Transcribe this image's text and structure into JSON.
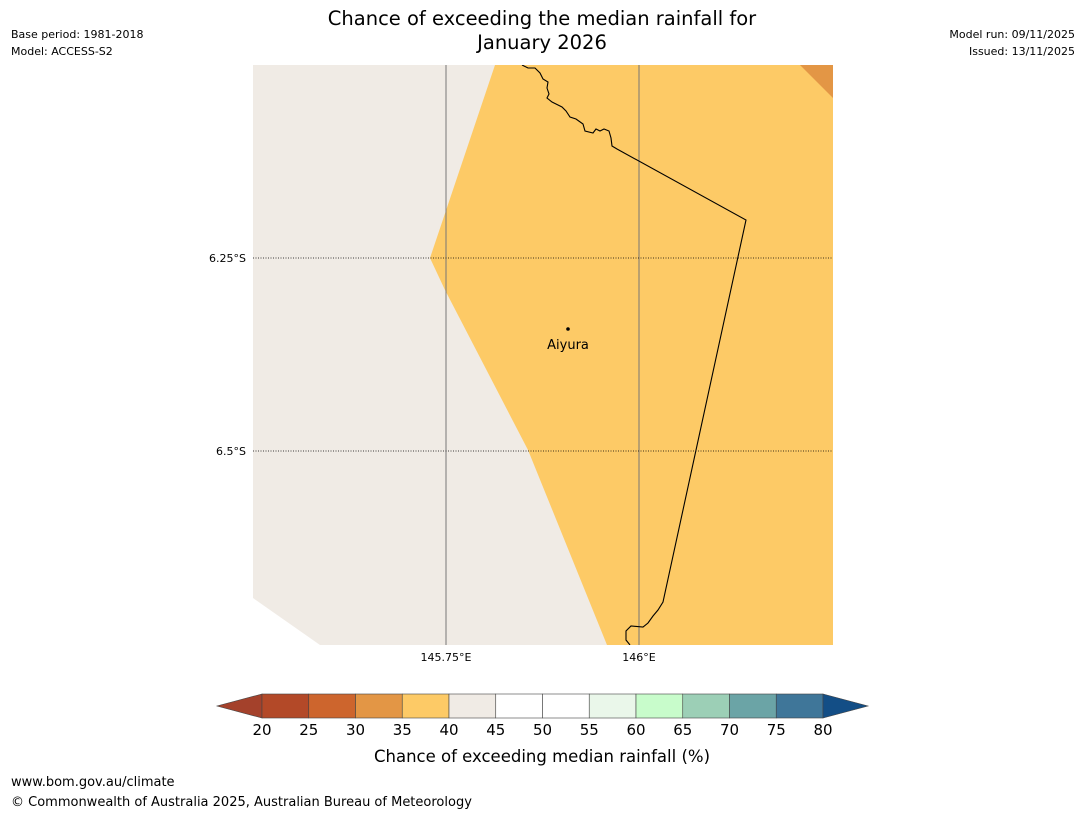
{
  "header": {
    "title_line1": "Chance of exceeding the median rainfall for",
    "title_line2": "January 2026",
    "base_period": "Base period: 1981-2018",
    "model": "Model: ACCESS-S2",
    "model_run": "Model run: 09/11/2025",
    "issued": "Issued: 13/11/2025"
  },
  "map": {
    "lat_labels": [
      "6.25°S",
      "6.5°S"
    ],
    "lon_labels": [
      "145.75°E",
      "146°E"
    ],
    "place": {
      "name": "Aiyura"
    },
    "region_colors": {
      "35-40": "#fdca66",
      "40-45": "#f0ebe5",
      "30-35": "#e39645"
    }
  },
  "legend": {
    "ticks": [
      "20",
      "25",
      "30",
      "35",
      "40",
      "45",
      "50",
      "55",
      "60",
      "65",
      "70",
      "75",
      "80"
    ],
    "colors": [
      "#a4412b",
      "#b34928",
      "#cd652d",
      "#e39645",
      "#fdca66",
      "#f0ebe5",
      "#ffffff",
      "#ffffff",
      "#eaf7ea",
      "#c8fccb",
      "#9ccfb6",
      "#6ba4a6",
      "#3f7699",
      "#134e86"
    ],
    "label": "Chance of exceeding median rainfall (%)"
  },
  "footer": {
    "url": "www.bom.gov.au/climate",
    "copyright": "© Commonwealth of Australia 2025, Australian Bureau of Meteorology"
  }
}
